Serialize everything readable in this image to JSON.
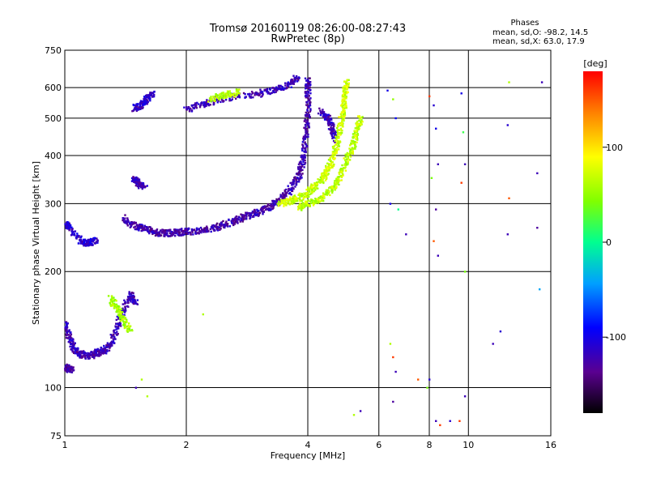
{
  "chart_data": {
    "type": "scatter",
    "title": "Tromsø 20160119 08:26:00-08:27:43",
    "subtitle": "RwPretec (8p)",
    "xlabel": "Frequency [MHz]",
    "ylabel": "Stationary phase Virtual Height [km]",
    "x_scale": "log",
    "y_scale": "log",
    "xlim": [
      1,
      16
    ],
    "ylim": [
      75,
      750
    ],
    "x_ticks": [
      "1",
      "2",
      "4",
      "6",
      "8",
      "10",
      "16"
    ],
    "x_tick_values": [
      1,
      2,
      4,
      6,
      8,
      10,
      16
    ],
    "y_ticks": [
      "75",
      "100",
      "200",
      "300",
      "400",
      "500",
      "600",
      "750"
    ],
    "y_tick_values": [
      75,
      100,
      200,
      300,
      400,
      500,
      600,
      750
    ],
    "grid": true,
    "phase_info": {
      "heading": "Phases",
      "line_o": "mean, sd,O: -98.2, 14.5",
      "line_x": "mean, sd,X:  63.0, 17.9"
    },
    "colorbar": {
      "label": "[deg]",
      "range": [
        -180,
        180
      ],
      "ticks": [
        "100",
        "0",
        "-100"
      ],
      "tick_values": [
        100,
        0,
        -100
      ]
    },
    "series": [
      {
        "mode": "O",
        "traces": [
          {
            "phase": -120,
            "points": [
              [
                1.0,
                148
              ],
              [
                1.03,
                133
              ],
              [
                1.06,
                125
              ],
              [
                1.1,
                122
              ],
              [
                1.15,
                121
              ],
              [
                1.2,
                123
              ],
              [
                1.25,
                125
              ],
              [
                1.3,
                130
              ],
              [
                1.35,
                145
              ],
              [
                1.4,
                160
              ],
              [
                1.45,
                175
              ],
              [
                1.5,
                165
              ]
            ]
          },
          {
            "phase": -130,
            "points": [
              [
                1.0,
                113
              ],
              [
                1.02,
                112
              ],
              [
                1.04,
                111
              ]
            ]
          },
          {
            "phase": -110,
            "points": [
              [
                1.0,
                265
              ],
              [
                1.02,
                262
              ],
              [
                1.1,
                238
              ],
              [
                1.15,
                238
              ],
              [
                1.2,
                242
              ]
            ]
          },
          {
            "phase": -125,
            "points": [
              [
                1.4,
                275
              ],
              [
                1.5,
                262
              ],
              [
                1.6,
                257
              ],
              [
                1.7,
                252
              ],
              [
                1.8,
                252
              ],
              [
                1.9,
                253
              ],
              [
                2.0,
                254
              ],
              [
                2.2,
                256
              ],
              [
                2.4,
                262
              ],
              [
                2.6,
                270
              ],
              [
                2.8,
                278
              ],
              [
                3.0,
                285
              ],
              [
                3.2,
                293
              ],
              [
                3.4,
                305
              ],
              [
                3.6,
                325
              ],
              [
                3.8,
                355
              ],
              [
                3.9,
                390
              ],
              [
                3.95,
                450
              ],
              [
                4.0,
                520
              ],
              [
                4.0,
                600
              ],
              [
                4.0,
                630
              ]
            ]
          },
          {
            "phase": -120,
            "points": [
              [
                1.48,
                350
              ],
              [
                1.52,
                340
              ],
              [
                1.58,
                330
              ]
            ]
          },
          {
            "phase": -115,
            "points": [
              [
                1.48,
                530
              ],
              [
                1.55,
                540
              ],
              [
                1.6,
                560
              ],
              [
                1.65,
                580
              ]
            ]
          },
          {
            "phase": -120,
            "points": [
              [
                2.0,
                525
              ],
              [
                2.2,
                545
              ],
              [
                2.5,
                565
              ],
              [
                3.0,
                578
              ],
              [
                3.3,
                590
              ],
              [
                3.6,
                610
              ],
              [
                3.8,
                640
              ]
            ]
          },
          {
            "phase": -118,
            "points": [
              [
                4.3,
                520
              ],
              [
                4.5,
                500
              ],
              [
                4.6,
                470
              ],
              [
                4.7,
                440
              ]
            ]
          }
        ]
      },
      {
        "mode": "X",
        "traces": [
          {
            "phase": 70,
            "points": [
              [
                3.4,
                300
              ],
              [
                3.6,
                305
              ],
              [
                3.8,
                310
              ],
              [
                4.0,
                320
              ],
              [
                4.2,
                335
              ],
              [
                4.4,
                355
              ],
              [
                4.55,
                380
              ],
              [
                4.7,
                420
              ],
              [
                4.8,
                470
              ],
              [
                4.9,
                530
              ],
              [
                4.95,
                590
              ],
              [
                5.0,
                620
              ]
            ]
          },
          {
            "phase": 65,
            "points": [
              [
                3.8,
                293
              ],
              [
                4.0,
                300
              ],
              [
                4.3,
                310
              ],
              [
                4.6,
                325
              ],
              [
                4.8,
                350
              ],
              [
                5.0,
                390
              ],
              [
                5.2,
                430
              ],
              [
                5.3,
                470
              ],
              [
                5.4,
                500
              ]
            ]
          },
          {
            "phase": 60,
            "points": [
              [
                2.3,
                560
              ],
              [
                2.5,
                575
              ],
              [
                2.7,
                585
              ]
            ]
          },
          {
            "phase": 55,
            "points": [
              [
                1.3,
                170
              ],
              [
                1.35,
                160
              ],
              [
                1.4,
                150
              ],
              [
                1.45,
                140
              ]
            ]
          }
        ]
      }
    ],
    "noise_points": [
      [
        6.3,
        590,
        -100
      ],
      [
        6.5,
        560,
        50
      ],
      [
        6.6,
        500,
        -90
      ],
      [
        6.4,
        300,
        -100
      ],
      [
        6.7,
        290,
        0
      ],
      [
        7.0,
        250,
        -120
      ],
      [
        8.0,
        570,
        160
      ],
      [
        8.2,
        540,
        -110
      ],
      [
        8.3,
        470,
        -100
      ],
      [
        8.4,
        380,
        -120
      ],
      [
        8.1,
        350,
        40
      ],
      [
        8.3,
        290,
        -130
      ],
      [
        8.2,
        240,
        150
      ],
      [
        8.4,
        220,
        -120
      ],
      [
        9.6,
        580,
        -100
      ],
      [
        9.7,
        460,
        20
      ],
      [
        9.8,
        380,
        -120
      ],
      [
        9.6,
        340,
        160
      ],
      [
        9.8,
        200,
        40
      ],
      [
        12.6,
        620,
        60
      ],
      [
        12.5,
        480,
        -110
      ],
      [
        12.6,
        310,
        150
      ],
      [
        12.5,
        250,
        -120
      ],
      [
        14.8,
        360,
        -120
      ],
      [
        15.2,
        620,
        -120
      ],
      [
        14.8,
        260,
        -130
      ],
      [
        15.0,
        180,
        -40
      ],
      [
        12.0,
        140,
        -110
      ],
      [
        11.5,
        130,
        -120
      ],
      [
        6.4,
        130,
        60
      ],
      [
        6.5,
        120,
        160
      ],
      [
        6.6,
        110,
        -120
      ],
      [
        7.5,
        105,
        150
      ],
      [
        7.9,
        100,
        40
      ],
      [
        8.0,
        105,
        -110
      ],
      [
        8.3,
        82,
        -120
      ],
      [
        8.5,
        80,
        160
      ],
      [
        9.0,
        82,
        -110
      ],
      [
        9.5,
        82,
        160
      ],
      [
        9.8,
        95,
        -120
      ],
      [
        5.2,
        85,
        60
      ],
      [
        5.4,
        87,
        -120
      ],
      [
        6.5,
        92,
        -130
      ],
      [
        2.2,
        155,
        60
      ],
      [
        1.5,
        100,
        -120
      ],
      [
        1.6,
        95,
        60
      ],
      [
        1.55,
        105,
        60
      ]
    ]
  }
}
